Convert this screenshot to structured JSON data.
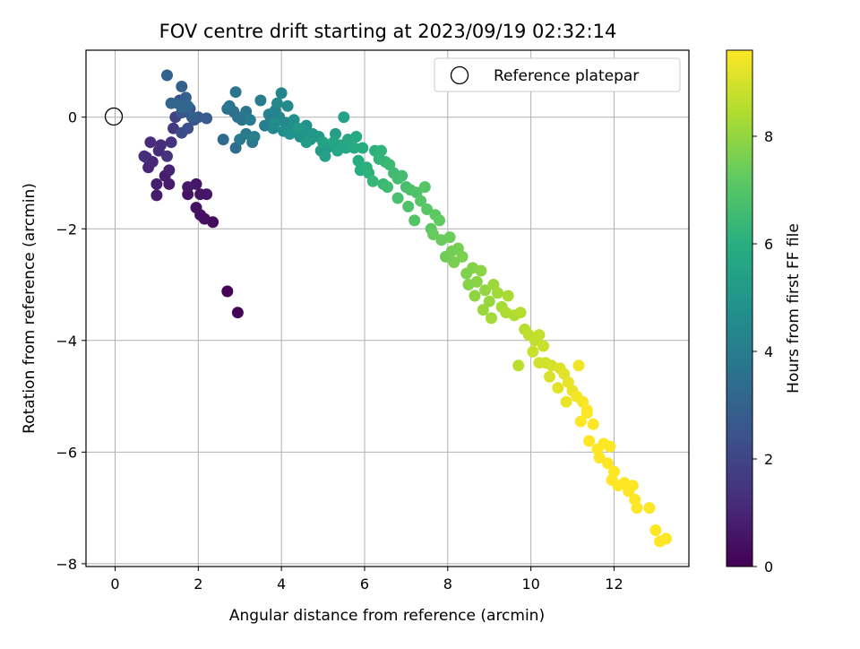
{
  "chart_data": {
    "type": "scatter",
    "title": "FOV centre drift starting at 2023/09/19 02:32:14",
    "xlabel": "Angular distance from reference (arcmin)",
    "ylabel": "Rotation from reference (arcmin)",
    "xlim": [
      -0.7,
      13.8
    ],
    "ylim": [
      -8.05,
      1.2
    ],
    "xticks": [
      0,
      2,
      4,
      6,
      8,
      10,
      12
    ],
    "yticks": [
      0,
      -2,
      -4,
      -6,
      -8
    ],
    "xtick_labels": [
      "0",
      "2",
      "4",
      "6",
      "8",
      "10",
      "12"
    ],
    "ytick_labels": [
      "0",
      "−2",
      "−4",
      "−6",
      "−8"
    ],
    "grid": true,
    "legend": {
      "position": "top-right",
      "entries": [
        "Reference platepar"
      ]
    },
    "reference_point": {
      "x": 0,
      "y": 0
    },
    "colorbar": {
      "label": "Hours from first FF file",
      "range": [
        0,
        9.6
      ],
      "ticks": [
        0,
        2,
        4,
        6,
        8
      ],
      "colormap": "viridis"
    },
    "points": [
      [
        2.7,
        -3.12,
        0.05
      ],
      [
        2.95,
        -3.5,
        0.1
      ],
      [
        2.35,
        -1.88,
        0.3
      ],
      [
        2.15,
        -1.82,
        0.35
      ],
      [
        2.05,
        -1.75,
        0.4
      ],
      [
        1.95,
        -1.62,
        0.45
      ],
      [
        1.75,
        -1.38,
        0.5
      ],
      [
        2.05,
        -1.38,
        0.55
      ],
      [
        2.2,
        -1.38,
        0.6
      ],
      [
        1.95,
        -1.2,
        0.6
      ],
      [
        1.75,
        -1.25,
        0.65
      ],
      [
        1.3,
        -1.2,
        0.7
      ],
      [
        1.0,
        -1.4,
        0.75
      ],
      [
        1.2,
        -1.05,
        0.8
      ],
      [
        1.0,
        -1.2,
        0.85
      ],
      [
        1.3,
        -0.95,
        0.9
      ],
      [
        0.8,
        -0.9,
        1.0
      ],
      [
        0.75,
        -0.72,
        1.05
      ],
      [
        0.9,
        -0.8,
        1.1
      ],
      [
        1.05,
        -0.6,
        1.15
      ],
      [
        0.85,
        -0.45,
        1.2
      ],
      [
        1.1,
        -0.5,
        1.25
      ],
      [
        0.7,
        -0.7,
        1.3
      ],
      [
        1.25,
        -0.7,
        1.35
      ],
      [
        1.35,
        -0.45,
        1.4
      ],
      [
        1.4,
        -0.2,
        1.6
      ],
      [
        1.45,
        0.0,
        1.9
      ],
      [
        1.55,
        0.3,
        2.1
      ],
      [
        1.6,
        -0.28,
        2.2
      ],
      [
        1.75,
        -0.2,
        2.3
      ],
      [
        1.8,
        0.15,
        2.4
      ],
      [
        1.6,
        0.08,
        2.5
      ],
      [
        1.7,
        0.1,
        2.6
      ],
      [
        1.9,
        -0.05,
        2.6
      ],
      [
        2.0,
        0.0,
        2.7
      ],
      [
        2.2,
        -0.02,
        2.8
      ],
      [
        1.85,
        0.0,
        2.85
      ],
      [
        1.7,
        0.35,
        2.9
      ],
      [
        1.6,
        0.55,
        2.95
      ],
      [
        1.25,
        0.75,
        3.0
      ],
      [
        1.5,
        0.25,
        3.05
      ],
      [
        1.35,
        0.25,
        3.1
      ],
      [
        1.6,
        0.18,
        3.15
      ],
      [
        1.75,
        0.2,
        3.2
      ],
      [
        2.6,
        -0.4,
        3.3
      ],
      [
        2.9,
        -0.55,
        3.4
      ],
      [
        2.7,
        0.15,
        3.5
      ],
      [
        2.85,
        0.1,
        3.55
      ],
      [
        2.95,
        0.0,
        3.6
      ],
      [
        3.05,
        -0.05,
        3.65
      ],
      [
        2.75,
        0.2,
        3.7
      ],
      [
        2.9,
        0.45,
        3.7
      ],
      [
        3.15,
        0.1,
        3.75
      ],
      [
        3.3,
        -0.45,
        3.8
      ],
      [
        3.0,
        -0.4,
        3.85
      ],
      [
        3.15,
        -0.3,
        3.9
      ],
      [
        3.25,
        -0.05,
        3.95
      ],
      [
        3.5,
        0.3,
        4.0
      ],
      [
        3.35,
        -0.35,
        4.05
      ],
      [
        3.6,
        -0.15,
        4.1
      ],
      [
        3.75,
        -0.05,
        4.15
      ],
      [
        3.7,
        0.05,
        4.2
      ],
      [
        3.85,
        0.12,
        4.25
      ],
      [
        3.95,
        0.0,
        4.3
      ],
      [
        4.0,
        0.43,
        4.35
      ],
      [
        3.8,
        -0.2,
        4.4
      ],
      [
        4.1,
        -0.1,
        4.45
      ],
      [
        3.9,
        0.25,
        4.5
      ],
      [
        4.15,
        0.2,
        4.55
      ],
      [
        4.25,
        -0.2,
        4.6
      ],
      [
        3.85,
        -0.1,
        4.65
      ],
      [
        4.05,
        -0.25,
        4.7
      ],
      [
        4.3,
        -0.05,
        4.75
      ],
      [
        4.45,
        -0.35,
        4.8
      ],
      [
        4.2,
        -0.3,
        4.85
      ],
      [
        4.6,
        -0.15,
        4.9
      ],
      [
        4.55,
        -0.25,
        4.95
      ],
      [
        4.7,
        -0.4,
        5.0
      ],
      [
        4.75,
        -0.3,
        5.05
      ],
      [
        4.4,
        -0.2,
        5.1
      ],
      [
        4.9,
        -0.35,
        5.15
      ],
      [
        4.6,
        -0.45,
        5.2
      ],
      [
        5.1,
        -0.55,
        5.25
      ],
      [
        4.95,
        -0.6,
        5.3
      ],
      [
        5.3,
        -0.3,
        5.35
      ],
      [
        5.05,
        -0.7,
        5.4
      ],
      [
        5.0,
        -0.45,
        5.45
      ],
      [
        5.5,
        0.0,
        5.5
      ],
      [
        5.25,
        -0.45,
        5.55
      ],
      [
        5.4,
        -0.5,
        5.6
      ],
      [
        5.55,
        -0.55,
        5.65
      ],
      [
        5.35,
        -0.6,
        5.7
      ],
      [
        5.6,
        -0.4,
        5.75
      ],
      [
        5.8,
        -0.35,
        5.8
      ],
      [
        5.75,
        -0.55,
        5.85
      ],
      [
        5.95,
        -0.55,
        5.9
      ],
      [
        5.85,
        -0.78,
        5.95
      ],
      [
        5.9,
        -0.95,
        6.0
      ],
      [
        6.05,
        -0.9,
        6.05
      ],
      [
        6.25,
        -0.6,
        6.1
      ],
      [
        6.1,
        -1.0,
        6.15
      ],
      [
        6.4,
        -0.6,
        6.2
      ],
      [
        6.35,
        -0.75,
        6.25
      ],
      [
        6.5,
        -0.8,
        6.3
      ],
      [
        6.2,
        -1.15,
        6.35
      ],
      [
        6.45,
        -1.2,
        6.4
      ],
      [
        6.6,
        -0.85,
        6.45
      ],
      [
        6.7,
        -1.0,
        6.5
      ],
      [
        6.55,
        -1.25,
        6.55
      ],
      [
        6.8,
        -1.1,
        6.6
      ],
      [
        6.9,
        -1.05,
        6.65
      ],
      [
        7.0,
        -1.25,
        6.7
      ],
      [
        6.8,
        -1.45,
        6.75
      ],
      [
        7.1,
        -1.3,
        6.8
      ],
      [
        7.05,
        -1.6,
        6.85
      ],
      [
        7.25,
        -1.35,
        6.9
      ],
      [
        7.2,
        -1.85,
        6.95
      ],
      [
        7.45,
        -1.25,
        7.0
      ],
      [
        7.35,
        -1.5,
        7.05
      ],
      [
        7.5,
        -1.65,
        7.1
      ],
      [
        7.6,
        -2.0,
        7.15
      ],
      [
        7.7,
        -1.75,
        7.2
      ],
      [
        7.8,
        -1.85,
        7.25
      ],
      [
        7.65,
        -2.1,
        7.3
      ],
      [
        7.85,
        -2.2,
        7.35
      ],
      [
        8.05,
        -2.15,
        7.4
      ],
      [
        7.95,
        -2.5,
        7.45
      ],
      [
        8.1,
        -2.4,
        7.5
      ],
      [
        8.25,
        -2.35,
        7.55
      ],
      [
        8.15,
        -2.6,
        7.6
      ],
      [
        8.35,
        -2.5,
        7.65
      ],
      [
        8.45,
        -2.8,
        7.7
      ],
      [
        8.6,
        -2.7,
        7.75
      ],
      [
        8.5,
        -3.0,
        7.8
      ],
      [
        8.7,
        -2.95,
        7.85
      ],
      [
        8.8,
        -2.75,
        7.9
      ],
      [
        8.65,
        -3.2,
        7.95
      ],
      [
        8.9,
        -3.1,
        8.0
      ],
      [
        9.0,
        -3.3,
        8.05
      ],
      [
        8.85,
        -3.45,
        8.1
      ],
      [
        9.1,
        -3.0,
        8.15
      ],
      [
        9.2,
        -3.15,
        8.2
      ],
      [
        9.05,
        -3.6,
        8.25
      ],
      [
        9.3,
        -3.4,
        8.3
      ],
      [
        9.45,
        -3.2,
        8.35
      ],
      [
        9.4,
        -3.5,
        8.4
      ],
      [
        9.6,
        -3.55,
        8.45
      ],
      [
        9.75,
        -3.5,
        8.5
      ],
      [
        9.85,
        -3.8,
        8.55
      ],
      [
        9.7,
        -4.45,
        8.6
      ],
      [
        9.95,
        -3.9,
        8.65
      ],
      [
        10.1,
        -4.0,
        8.7
      ],
      [
        10.2,
        -3.9,
        8.75
      ],
      [
        10.05,
        -4.2,
        8.8
      ],
      [
        10.3,
        -4.1,
        8.85
      ],
      [
        10.35,
        -4.4,
        8.9
      ],
      [
        10.2,
        -4.4,
        8.95
      ],
      [
        10.5,
        -4.45,
        9.0
      ],
      [
        10.45,
        -4.65,
        9.05
      ],
      [
        10.7,
        -4.5,
        9.1
      ],
      [
        10.8,
        -4.6,
        9.15
      ],
      [
        10.65,
        -4.85,
        9.2
      ],
      [
        10.9,
        -4.75,
        9.25
      ],
      [
        11.0,
        -4.9,
        9.3
      ],
      [
        10.85,
        -5.1,
        9.35
      ],
      [
        11.15,
        -4.45,
        9.4
      ],
      [
        11.1,
        -5.0,
        9.45
      ],
      [
        11.25,
        -5.1,
        9.5
      ],
      [
        11.35,
        -5.3,
        9.55
      ],
      [
        11.2,
        -5.45,
        9.6
      ]
    ],
    "points_tail": [
      [
        11.5,
        -5.5,
        9.6
      ],
      [
        11.4,
        -5.8,
        9.6
      ],
      [
        11.6,
        -5.95,
        9.6
      ],
      [
        11.75,
        -5.85,
        9.6
      ],
      [
        11.65,
        -6.1,
        9.6
      ],
      [
        11.85,
        -6.2,
        9.6
      ],
      [
        11.9,
        -5.9,
        9.6
      ],
      [
        12.0,
        -6.35,
        9.6
      ],
      [
        11.95,
        -6.5,
        9.6
      ],
      [
        12.1,
        -6.6,
        9.6
      ],
      [
        12.25,
        -6.55,
        9.6
      ],
      [
        12.35,
        -6.7,
        9.6
      ],
      [
        12.45,
        -6.6,
        9.6
      ],
      [
        12.5,
        -6.85,
        9.6
      ],
      [
        12.55,
        -7.0,
        9.6
      ],
      [
        12.85,
        -7.0,
        9.6
      ],
      [
        13.0,
        -7.4,
        9.6
      ],
      [
        13.1,
        -7.6,
        9.6
      ],
      [
        13.25,
        -7.55,
        9.6
      ],
      [
        11.35,
        -5.25,
        9.6
      ]
    ]
  }
}
